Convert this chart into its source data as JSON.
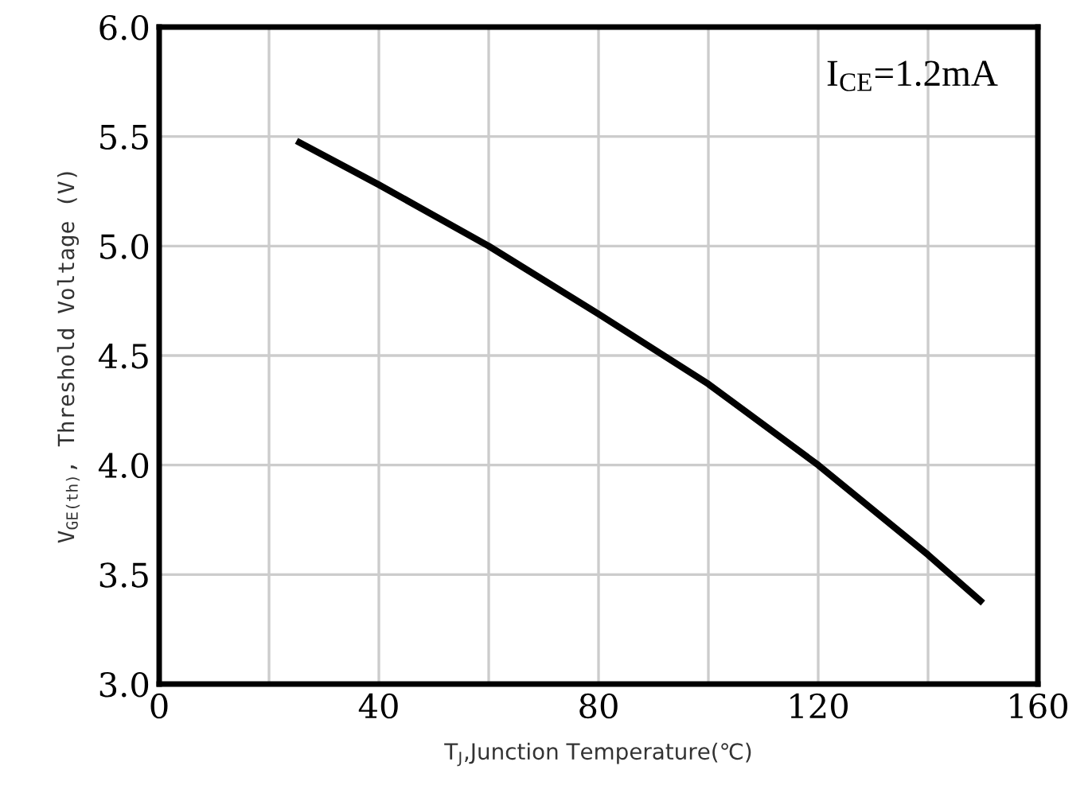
{
  "chart_data": {
    "type": "line",
    "xlabel": "T$_{J}$,Junction Temperature(℃)",
    "ylabel": "V$_{GE(th)}$, Threshold Voltage (V)",
    "annotations": [
      "I$_{CE}$=1.2mA"
    ],
    "series": [
      {
        "color": "#000000",
        "x": [
          25,
          40,
          60,
          80,
          100,
          120,
          140,
          150
        ],
        "values": [
          5.48,
          5.28,
          5.0,
          4.69,
          4.37,
          4.0,
          3.59,
          3.37
        ]
      }
    ],
    "xlim": [
      0,
      160
    ],
    "xticks": [
      0,
      {
        "value": 20,
        "label": null
      },
      40,
      {
        "value": 60,
        "label": null
      },
      80,
      {
        "value": 100,
        "label": null
      },
      120,
      {
        "value": 140,
        "label": null
      },
      160
    ],
    "ylim": [
      3.0,
      6.0
    ],
    "yticks": [
      {
        "value": 3,
        "label": "3.0"
      },
      3.5,
      {
        "value": 4,
        "label": "4.0"
      },
      4.5,
      {
        "value": 5,
        "label": "5.0"
      },
      5.5,
      {
        "value": 6,
        "label": "6.0"
      }
    ],
    "grid": true,
    "marker": "none",
    "line_style": "solid"
  }
}
